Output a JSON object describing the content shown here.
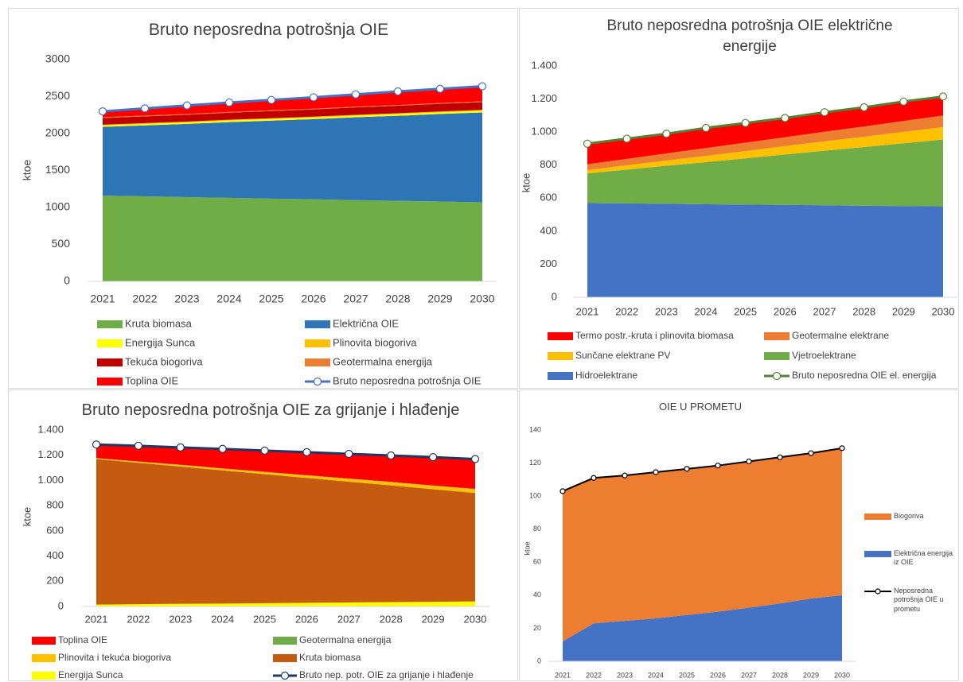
{
  "chart_data": [
    {
      "type": "area",
      "title": "Bruto neposredna potrošnja OIE",
      "ylabel": "ktoe",
      "categories": [
        "2021",
        "2022",
        "2023",
        "2024",
        "2025",
        "2026",
        "2027",
        "2028",
        "2029",
        "2030"
      ],
      "ylim": [
        0,
        3000
      ],
      "yticks": [
        0,
        500,
        1000,
        1500,
        2000,
        2500,
        3000
      ],
      "grid": false,
      "legend": "bottom",
      "series": [
        {
          "name": "Kruta biomasa",
          "color": "#70ad47",
          "values": [
            1160,
            1150,
            1140,
            1130,
            1120,
            1110,
            1100,
            1090,
            1080,
            1070
          ]
        },
        {
          "name": "Električna OIE",
          "color": "#2e75b6",
          "values": [
            930,
            960,
            990,
            1025,
            1055,
            1085,
            1120,
            1150,
            1185,
            1215
          ]
        },
        {
          "name": "Energija Sunca",
          "color": "#ffff00",
          "values": [
            20,
            21,
            21,
            22,
            22,
            23,
            23,
            24,
            24,
            25
          ]
        },
        {
          "name": "Plinovita biogoriva",
          "color": "#ffc000",
          "values": [
            10,
            10,
            10,
            10,
            10,
            10,
            10,
            10,
            10,
            10
          ]
        },
        {
          "name": "Tekuća biogoriva",
          "color": "#c00000",
          "values": [
            90,
            92,
            93,
            95,
            97,
            98,
            100,
            102,
            103,
            105
          ]
        },
        {
          "name": "Geotermalna energija",
          "color": "#ed7d31",
          "values": [
            10,
            10,
            10,
            10,
            10,
            10,
            10,
            10,
            10,
            10
          ]
        },
        {
          "name": "Toplina OIE",
          "color": "#ff0000",
          "values": [
            80,
            97,
            116,
            128,
            141,
            154,
            167,
            184,
            193,
            205
          ]
        },
        {
          "name": "Bruto neposredna potrošnja OIE",
          "color": "#4472c4",
          "type": "line",
          "markers": true,
          "values": [
            2300,
            2340,
            2380,
            2420,
            2455,
            2490,
            2530,
            2570,
            2605,
            2640
          ]
        }
      ]
    },
    {
      "type": "area",
      "title": "Bruto neposredna potrošnja OIE električne energije",
      "ylabel": "ktoe",
      "categories": [
        "2021",
        "2022",
        "2023",
        "2024",
        "2025",
        "2026",
        "2027",
        "2028",
        "2029",
        "2030"
      ],
      "ylim": [
        0,
        1400
      ],
      "yticks": [
        0,
        200,
        400,
        600,
        800,
        {
          "value": 1000,
          "label": "1.000"
        },
        {
          "value": 1200,
          "label": "1.200"
        },
        {
          "value": 1400,
          "label": "1.400"
        }
      ],
      "grid": false,
      "legend": "bottom",
      "series": [
        {
          "name": "Termo postr.-kruta i plinovita biomasa",
          "color": "#ff0000",
          "values": [
            125,
            122,
            119,
            122,
            119,
            116,
            118,
            116,
            118,
            115
          ]
        },
        {
          "name": "Geotermalne elektrane",
          "color": "#ed7d31",
          "values": [
            35,
            39,
            43,
            47,
            51,
            54,
            58,
            62,
            66,
            70
          ]
        },
        {
          "name": "Sunčane elektrane PV",
          "color": "#ffc000",
          "values": [
            20,
            26,
            32,
            38,
            44,
            51,
            57,
            63,
            69,
            75
          ]
        },
        {
          "name": "Vjetroelektrane",
          "color": "#70ad47",
          "values": [
            180,
            205,
            230,
            255,
            280,
            305,
            330,
            355,
            380,
            405
          ]
        },
        {
          "name": "Hidroelektrane",
          "color": "#4472c4",
          "values": [
            570,
            568,
            566,
            563,
            561,
            559,
            557,
            554,
            552,
            550
          ]
        },
        {
          "name": "Bruto neposredna OIE el. energija",
          "color": "#548235",
          "type": "line",
          "markers": true,
          "values": [
            930,
            960,
            990,
            1025,
            1055,
            1085,
            1120,
            1150,
            1185,
            1215
          ]
        }
      ]
    },
    {
      "type": "area",
      "title": "Bruto neposredna potrošnja OIE za grijanje i hlađenje",
      "ylabel": "ktoe",
      "categories": [
        "2021",
        "2022",
        "2023",
        "2024",
        "2025",
        "2026",
        "2027",
        "2028",
        "2029",
        "2030"
      ],
      "ylim": [
        0,
        1400
      ],
      "yticks": [
        0,
        200,
        400,
        600,
        800,
        {
          "value": 1000,
          "label": "1.000"
        },
        {
          "value": 1200,
          "label": "1.200"
        },
        {
          "value": 1400,
          "label": "1.400"
        }
      ],
      "grid": false,
      "legend": "bottom",
      "series": [
        {
          "name": "Toplina OIE",
          "color": "#ff0000",
          "values": [
            107,
            124,
            137,
            154,
            168,
            182,
            196,
            209,
            225,
            237
          ]
        },
        {
          "name": "Geotermalna energija",
          "color": "#70ad47",
          "values": [
            3,
            3,
            3,
            3,
            3,
            3,
            3,
            3,
            3,
            3
          ]
        },
        {
          "name": "Plinovita i tekuća biogoriva",
          "color": "#ffc000",
          "values": [
            5,
            8,
            11,
            13,
            16,
            19,
            22,
            25,
            27,
            30
          ]
        },
        {
          "name": "Kruta biomasa",
          "color": "#c55a11",
          "values": [
            1155,
            1122,
            1090,
            1057,
            1024,
            991,
            958,
            926,
            893,
            860
          ]
        },
        {
          "name": "Energija Sunca",
          "color": "#ffff00",
          "values": [
            15,
            18,
            21,
            23,
            26,
            29,
            32,
            35,
            37,
            40
          ]
        },
        {
          "name": "Bruto nep. potr. OIE za grijanje i hlađenje",
          "color": "#1f3864",
          "type": "line",
          "markers": true,
          "values": [
            1285,
            1275,
            1262,
            1250,
            1237,
            1224,
            1211,
            1198,
            1185,
            1170
          ]
        }
      ]
    },
    {
      "type": "area",
      "title": "OIE U PROMETU",
      "ylabel": "ktoe",
      "categories": [
        "2021",
        "2022",
        "2023",
        "2024",
        "2025",
        "2026",
        "2027",
        "2028",
        "2029",
        "2030"
      ],
      "ylim": [
        0,
        140
      ],
      "yticks": [
        0,
        20,
        40,
        60,
        80,
        100,
        120,
        140
      ],
      "grid": false,
      "legend": "right",
      "series": [
        {
          "name": "Biogoriva",
          "color": "#ed7d31",
          "values": [
            91,
            88,
            88,
            88.5,
            88.5,
            88.5,
            88.5,
            88.5,
            88,
            89
          ]
        },
        {
          "name": "Električna energija iz OIE",
          "color": "#4472c4",
          "values": [
            12,
            23,
            24.5,
            26,
            28,
            30,
            32.5,
            35,
            38,
            40
          ]
        },
        {
          "name": "Neposredna potrošnja OIE u prometu",
          "color": "#000000",
          "type": "line",
          "markers": true,
          "values": [
            103,
            111,
            112.5,
            114.5,
            116.5,
            118.5,
            121,
            123.5,
            126,
            129
          ]
        }
      ]
    }
  ]
}
